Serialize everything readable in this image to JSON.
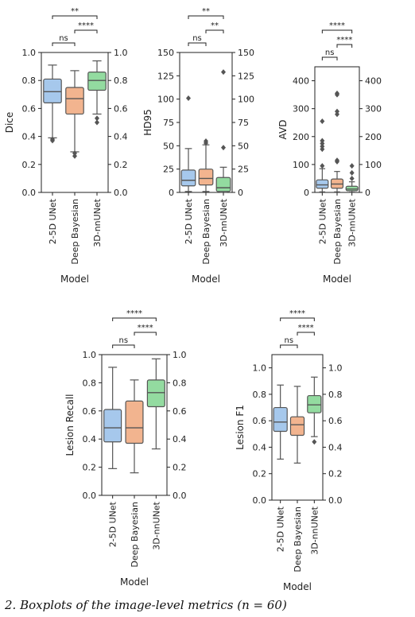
{
  "caption": "2. Boxplots of the image-level metrics (n = 60)",
  "colors": {
    "2-5D UNet": "#a6c8ec",
    "Deep Bayesian": "#f2b48f",
    "3D-nnUNet": "#93dba0",
    "edge": "#555555",
    "outlier": "#555555"
  },
  "chart_data": [
    {
      "type": "box",
      "ylabel": "Dice",
      "xlabel": "Model",
      "categories": [
        "2-5D UNet",
        "Deep Bayesian",
        "3D-nnUNet"
      ],
      "ylim": [
        0,
        1.0
      ],
      "yticks": [
        0.0,
        0.2,
        0.4,
        0.6,
        0.8,
        1.0
      ],
      "ytick_labels": [
        "0.0",
        "0.2",
        "0.4",
        "0.6",
        "0.8",
        "1.0"
      ],
      "boxes": [
        {
          "min": 0.39,
          "q1": 0.64,
          "median": 0.72,
          "q3": 0.81,
          "max": 0.91,
          "outliers": [
            0.37,
            0.38
          ]
        },
        {
          "min": 0.29,
          "q1": 0.56,
          "median": 0.67,
          "q3": 0.75,
          "max": 0.87,
          "outliers": [
            0.26,
            0.28
          ]
        },
        {
          "min": 0.56,
          "q1": 0.73,
          "median": 0.8,
          "q3": 0.86,
          "max": 0.94,
          "outliers": [
            0.5,
            0.53
          ]
        }
      ],
      "significance": [
        {
          "from": 0,
          "to": 1,
          "label": "ns"
        },
        {
          "from": 1,
          "to": 2,
          "label": "****"
        },
        {
          "from": 0,
          "to": 2,
          "label": "**"
        }
      ]
    },
    {
      "type": "box",
      "ylabel": "HD95",
      "xlabel": "Model",
      "categories": [
        "2-5D UNet",
        "Deep Bayesian",
        "3D-nnUNet"
      ],
      "ylim": [
        0,
        150
      ],
      "yticks": [
        0,
        25,
        50,
        75,
        100,
        125,
        150
      ],
      "ytick_labels": [
        "0",
        "25",
        "50",
        "75",
        "100",
        "125",
        "150"
      ],
      "boxes": [
        {
          "min": 1,
          "q1": 7,
          "median": 13,
          "q3": 24,
          "max": 47,
          "outliers": [
            101
          ]
        },
        {
          "min": 1,
          "q1": 8,
          "median": 15,
          "q3": 25,
          "max": 51,
          "outliers": [
            53,
            55
          ]
        },
        {
          "min": 0,
          "q1": 1,
          "median": 5,
          "q3": 16,
          "max": 27,
          "outliers": [
            48,
            129
          ]
        }
      ],
      "significance": [
        {
          "from": 0,
          "to": 1,
          "label": "ns"
        },
        {
          "from": 1,
          "to": 2,
          "label": "**"
        },
        {
          "from": 0,
          "to": 2,
          "label": "**"
        }
      ]
    },
    {
      "type": "box",
      "ylabel": "AVD",
      "xlabel": "Model",
      "categories": [
        "2-5D UNet",
        "Deep Bayesian",
        "3D-nnUNet"
      ],
      "ylim": [
        0,
        450
      ],
      "yticks": [
        0,
        100,
        200,
        300,
        400
      ],
      "ytick_labels": [
        "0",
        "100",
        "200",
        "300",
        "400"
      ],
      "boxes": [
        {
          "min": 2,
          "q1": 15,
          "median": 27,
          "q3": 45,
          "max": 85,
          "outliers": [
            95,
            155,
            165,
            175,
            185,
            255
          ]
        },
        {
          "min": 2,
          "q1": 15,
          "median": 30,
          "q3": 48,
          "max": 75,
          "outliers": [
            110,
            115,
            280,
            290,
            350,
            355
          ]
        },
        {
          "min": 1,
          "q1": 6,
          "median": 12,
          "q3": 22,
          "max": 38,
          "outliers": [
            50,
            70,
            95
          ]
        }
      ],
      "significance": [
        {
          "from": 0,
          "to": 1,
          "label": "ns"
        },
        {
          "from": 1,
          "to": 2,
          "label": "****"
        },
        {
          "from": 0,
          "to": 2,
          "label": "****"
        }
      ]
    },
    {
      "type": "box",
      "ylabel": "Lesion Recall",
      "xlabel": "Model",
      "categories": [
        "2-5D UNet",
        "Deep Bayesian",
        "3D-nnUNet"
      ],
      "ylim": [
        0,
        1.0
      ],
      "yticks": [
        0.0,
        0.2,
        0.4,
        0.6,
        0.8,
        1.0
      ],
      "ytick_labels": [
        "0.0",
        "0.2",
        "0.4",
        "0.6",
        "0.8",
        "1.0"
      ],
      "boxes": [
        {
          "min": 0.19,
          "q1": 0.38,
          "median": 0.48,
          "q3": 0.61,
          "max": 0.91,
          "outliers": []
        },
        {
          "min": 0.16,
          "q1": 0.37,
          "median": 0.48,
          "q3": 0.67,
          "max": 0.82,
          "outliers": []
        },
        {
          "min": 0.33,
          "q1": 0.63,
          "median": 0.73,
          "q3": 0.82,
          "max": 0.97,
          "outliers": []
        }
      ],
      "significance": [
        {
          "from": 0,
          "to": 1,
          "label": "ns"
        },
        {
          "from": 1,
          "to": 2,
          "label": "****"
        },
        {
          "from": 0,
          "to": 2,
          "label": "****"
        }
      ]
    },
    {
      "type": "box",
      "ylabel": "Lesion F1",
      "xlabel": "Model",
      "categories": [
        "2-5D UNet",
        "Deep Bayesian",
        "3D-nnUNet"
      ],
      "ylim": [
        0,
        1.1
      ],
      "yticks": [
        0.0,
        0.2,
        0.4,
        0.6,
        0.8,
        1.0
      ],
      "ytick_labels": [
        "0.0",
        "0.2",
        "0.4",
        "0.6",
        "0.8",
        "1.0"
      ],
      "boxes": [
        {
          "min": 0.31,
          "q1": 0.52,
          "median": 0.59,
          "q3": 0.7,
          "max": 0.87,
          "outliers": []
        },
        {
          "min": 0.28,
          "q1": 0.49,
          "median": 0.57,
          "q3": 0.63,
          "max": 0.86,
          "outliers": []
        },
        {
          "min": 0.48,
          "q1": 0.66,
          "median": 0.72,
          "q3": 0.79,
          "max": 0.93,
          "outliers": [
            0.44
          ]
        }
      ],
      "significance": [
        {
          "from": 0,
          "to": 1,
          "label": "ns"
        },
        {
          "from": 1,
          "to": 2,
          "label": "****"
        },
        {
          "from": 0,
          "to": 2,
          "label": "****"
        }
      ]
    }
  ]
}
